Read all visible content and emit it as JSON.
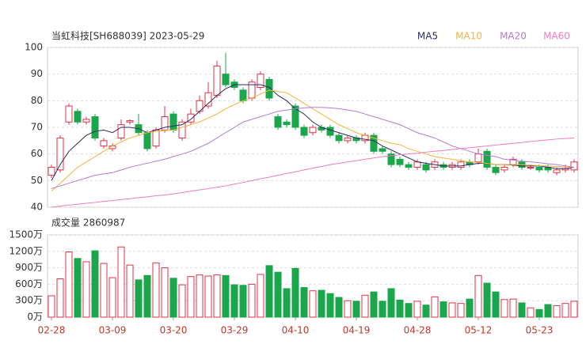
{
  "chart_data": [
    {
      "type": "candlestick",
      "title": "当虹科技[SH688039] 2023-05-29",
      "ylim": [
        40,
        100
      ],
      "yticks": [
        40,
        50,
        60,
        70,
        80,
        90,
        100
      ],
      "grid": true,
      "up_color": "#e0334a",
      "down_color": "#1aa64a",
      "open": [
        52,
        54,
        72,
        76,
        72,
        74,
        63,
        62,
        66,
        72,
        71,
        68,
        63,
        69,
        75,
        66,
        72,
        76,
        78,
        82,
        90,
        87,
        84,
        81,
        85,
        88,
        74,
        72,
        78,
        70,
        68,
        70,
        70,
        67,
        65,
        66,
        65,
        67,
        62,
        60,
        58,
        56,
        55,
        56,
        55,
        56,
        55,
        55,
        57,
        57,
        61,
        55,
        54,
        56,
        57,
        55,
        55,
        55,
        53,
        54,
        54
      ],
      "high": [
        56,
        67,
        79,
        77,
        74,
        75,
        66,
        64,
        73,
        73,
        75,
        69,
        70,
        78,
        76,
        73,
        77,
        82,
        87,
        95,
        98,
        88,
        85,
        88,
        91,
        89,
        75,
        73,
        79,
        71,
        71,
        71,
        71,
        68,
        67,
        67,
        68,
        68,
        63,
        61,
        59,
        57,
        58,
        57,
        58,
        57,
        57,
        58,
        58,
        62,
        62,
        56,
        56,
        59,
        58,
        56,
        56,
        56,
        55,
        56,
        58
      ],
      "low": [
        51,
        53,
        71,
        71,
        71,
        65,
        62,
        61,
        65,
        71,
        67,
        61,
        62,
        68,
        68,
        65,
        71,
        75,
        77,
        81,
        85,
        84,
        79,
        80,
        84,
        80,
        69,
        70,
        69,
        66,
        67,
        68,
        66,
        64,
        64,
        64,
        64,
        60,
        60,
        55,
        55,
        54,
        54,
        53,
        54,
        54,
        54,
        54,
        55,
        56,
        54,
        52,
        53,
        55,
        54,
        54,
        53,
        53,
        52,
        53,
        53
      ],
      "close": [
        55,
        66,
        78,
        72,
        73,
        66,
        65,
        63,
        71,
        72.5,
        68,
        62,
        69,
        74,
        69,
        72,
        75,
        80,
        83,
        93,
        86,
        85,
        80,
        87,
        90,
        81,
        70,
        71,
        70,
        67,
        70,
        69,
        67,
        65,
        66,
        65,
        67,
        61,
        61,
        56,
        56,
        55,
        57,
        54,
        57,
        55,
        56,
        57,
        56,
        60,
        55,
        53,
        55,
        58,
        55,
        55,
        54,
        54,
        54,
        54.5,
        57
      ],
      "series": [
        {
          "name": "MA5",
          "color": "#2b2d5e",
          "values": [
            50,
            56,
            61,
            64,
            67,
            68.5,
            69,
            68,
            70,
            70,
            69.5,
            68,
            69,
            70,
            70.5,
            71,
            73,
            76,
            79,
            82,
            84.5,
            86,
            86,
            86,
            86,
            85,
            82,
            80,
            77,
            75,
            72,
            70,
            69,
            68,
            67,
            66,
            65.5,
            65,
            63,
            61.5,
            60,
            58.5,
            57,
            56.5,
            56,
            55.5,
            55.5,
            55.5,
            56,
            56.5,
            56.5,
            56,
            56,
            55.8,
            55.5,
            55.5,
            55.5,
            55,
            54.5,
            54.5,
            55
          ]
        },
        {
          "name": "MA10",
          "color": "#f5b342",
          "values": [
            46,
            49,
            52,
            55,
            57,
            59,
            61,
            63,
            64.5,
            66,
            67,
            68,
            68.5,
            68.8,
            69,
            70,
            71,
            72,
            73.5,
            75,
            77,
            78.5,
            80,
            81,
            82.5,
            84,
            83.5,
            83,
            81,
            79,
            77,
            75,
            73,
            71,
            69.5,
            68,
            67,
            66,
            65,
            64,
            63.5,
            62,
            61,
            60,
            59,
            58.5,
            58,
            57.5,
            57,
            56.8,
            56.5,
            56,
            56,
            56,
            56,
            55.8,
            55.6,
            55.5,
            55.3,
            55.2,
            55
          ]
        },
        {
          "name": "MA20",
          "color": "#b67bd6",
          "values": [
            47,
            48,
            49,
            50,
            51,
            52,
            52.5,
            53,
            54,
            55,
            55.8,
            56.5,
            57.3,
            58,
            59,
            60,
            61,
            62.5,
            64,
            66,
            68,
            70,
            72,
            73,
            74,
            75,
            76,
            76.5,
            77,
            77.3,
            77.5,
            77.5,
            77.3,
            77,
            76.5,
            76,
            75,
            74,
            73,
            72,
            71,
            69.5,
            68,
            67,
            66,
            64.5,
            63,
            62,
            61,
            60,
            59.5,
            59,
            58,
            57.7,
            57.3,
            57,
            56.7,
            56.3,
            56,
            55.5,
            55
          ]
        },
        {
          "name": "MA60",
          "color": "#f17cbf",
          "values": [
            40,
            40.4,
            40.8,
            41.1,
            41.5,
            41.8,
            42.2,
            42.5,
            42.9,
            43.2,
            43.6,
            43.9,
            44.3,
            44.6,
            45,
            45.5,
            46,
            46.5,
            47,
            47.5,
            48,
            48.7,
            49.3,
            50,
            50.7,
            51.3,
            52,
            52.7,
            53.3,
            54,
            54.7,
            55.3,
            56,
            56.5,
            57,
            57.5,
            58,
            58.5,
            59,
            59.3,
            59.7,
            60,
            60.3,
            60.7,
            61,
            61.3,
            61.7,
            62,
            62.3,
            62.7,
            63,
            63.3,
            63.7,
            64,
            64.3,
            64.7,
            65,
            65.3,
            65.6,
            65.8,
            66
          ]
        }
      ]
    },
    {
      "type": "bar",
      "title": "成交量 2860987",
      "ylim": [
        0,
        1500
      ],
      "yticks": [
        {
          "value": 0,
          "label": "0万"
        },
        {
          "value": 300,
          "label": "300万"
        },
        {
          "value": 600,
          "label": "600万"
        },
        {
          "value": 900,
          "label": "900万"
        },
        {
          "value": 1200,
          "label": "1200万"
        },
        {
          "value": 1500,
          "label": "1500万"
        }
      ],
      "grid": true,
      "categories": [
        "02-28",
        null,
        null,
        null,
        null,
        null,
        null,
        "03-09",
        null,
        null,
        null,
        null,
        null,
        null,
        "03-20",
        null,
        null,
        null,
        null,
        null,
        null,
        "03-29",
        null,
        null,
        null,
        null,
        null,
        null,
        "04-10",
        null,
        null,
        null,
        null,
        null,
        null,
        "04-19",
        null,
        null,
        null,
        null,
        null,
        null,
        "04-28",
        null,
        null,
        null,
        null,
        null,
        null,
        "05-12",
        null,
        null,
        null,
        null,
        null,
        null,
        "05-23",
        null,
        null,
        null,
        null
      ],
      "values": [
        390,
        700,
        1190,
        1070,
        1010,
        1210,
        980,
        720,
        1280,
        950,
        680,
        760,
        990,
        900,
        710,
        590,
        740,
        770,
        750,
        770,
        760,
        590,
        580,
        600,
        780,
        940,
        820,
        520,
        890,
        540,
        480,
        490,
        430,
        360,
        300,
        290,
        400,
        460,
        290,
        520,
        310,
        250,
        290,
        220,
        370,
        280,
        260,
        250,
        330,
        760,
        620,
        460,
        320,
        330,
        260,
        170,
        140,
        230,
        210,
        250,
        290
      ]
    }
  ]
}
